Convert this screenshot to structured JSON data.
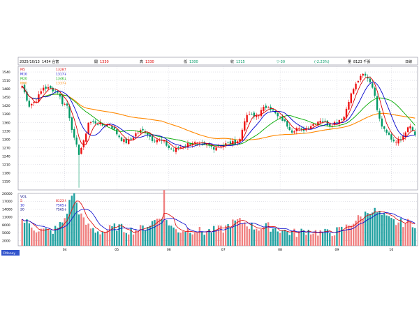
{
  "header": {
    "date": "2025/10/13",
    "code_name": "1454 台富",
    "open_label": "開",
    "open_value": "1330",
    "high_label": "高",
    "high_value": "1330",
    "low_label": "低",
    "low_value": "1300",
    "close_label": "收",
    "close_value": "1315",
    "change_value": "▽-30",
    "change_pct": "(-2.23%)",
    "volume_label": "量",
    "volume_value": "8123 千張",
    "period": "日線"
  },
  "legend_ma": [
    {
      "name": "M5",
      "value": "1328↑",
      "color": "#dd0000"
    },
    {
      "name": "M10",
      "value": "1317↓",
      "color": "#0000cc"
    },
    {
      "name": "M20",
      "value": "1346↓",
      "color": "#00aa00"
    },
    {
      "name": "M60",
      "value": "1337↓",
      "color": "#ff8800"
    }
  ],
  "legend_vol": [
    {
      "name": "VOL",
      "value": "",
      "color": "#000080"
    },
    {
      "name": "5",
      "value": "8123↑",
      "color": "#dd0000"
    },
    {
      "name": "10",
      "value": "7565↓",
      "color": "#0000cc"
    },
    {
      "name": "20",
      "value": "7565↓",
      "color": "#000080"
    }
  ],
  "footer_tag": "CMoney",
  "colors": {
    "up": "#ee1111",
    "down": "#009966",
    "vol_up": "#f08080",
    "vol_down": "#20a0a0",
    "ma5": "#dd0000",
    "ma10": "#0000cc",
    "ma20": "#00aa00",
    "ma60": "#ff8800",
    "grid": "#bbbbcc",
    "border": "#888899"
  },
  "chart_data": {
    "type": "candlestick",
    "price_axis": {
      "min": 1120,
      "max": 1560,
      "ticks": [
        1150,
        1180,
        1210,
        1240,
        1270,
        1300,
        1330,
        1360,
        1390,
        1420,
        1450,
        1480,
        1510,
        1540
      ]
    },
    "volume_axis": {
      "min": 0,
      "max": 20000,
      "ticks": [
        2000,
        5000,
        8000,
        11000,
        14000,
        17000,
        20000
      ]
    },
    "month_labels": [
      {
        "label": "04",
        "index": 18
      },
      {
        "label": "05",
        "index": 40
      },
      {
        "label": "06",
        "index": 62
      },
      {
        "label": "07",
        "index": 85
      },
      {
        "label": "08",
        "index": 109
      },
      {
        "label": "09",
        "index": 133
      },
      {
        "label": "10",
        "index": 156
      }
    ],
    "count": 167,
    "close_anchors": [
      [
        0,
        1490
      ],
      [
        3,
        1420
      ],
      [
        6,
        1440
      ],
      [
        9,
        1485
      ],
      [
        12,
        1480
      ],
      [
        15,
        1470
      ],
      [
        17,
        1430
      ],
      [
        19,
        1420
      ],
      [
        20,
        1380
      ],
      [
        22,
        1300
      ],
      [
        24,
        1250
      ],
      [
        26,
        1290
      ],
      [
        28,
        1360
      ],
      [
        31,
        1360
      ],
      [
        34,
        1350
      ],
      [
        37,
        1355
      ],
      [
        40,
        1320
      ],
      [
        42,
        1300
      ],
      [
        44,
        1290
      ],
      [
        46,
        1300
      ],
      [
        48,
        1320
      ],
      [
        50,
        1330
      ],
      [
        52,
        1330
      ],
      [
        55,
        1300
      ],
      [
        57,
        1300
      ],
      [
        60,
        1290
      ],
      [
        62,
        1270
      ],
      [
        64,
        1260
      ],
      [
        66,
        1270
      ],
      [
        69,
        1280
      ],
      [
        72,
        1290
      ],
      [
        75,
        1280
      ],
      [
        78,
        1280
      ],
      [
        81,
        1270
      ],
      [
        84,
        1280
      ],
      [
        87,
        1285
      ],
      [
        90,
        1290
      ],
      [
        92,
        1300
      ],
      [
        94,
        1370
      ],
      [
        96,
        1390
      ],
      [
        98,
        1380
      ],
      [
        100,
        1390
      ],
      [
        102,
        1410
      ],
      [
        104,
        1420
      ],
      [
        106,
        1400
      ],
      [
        108,
        1380
      ],
      [
        110,
        1370
      ],
      [
        112,
        1350
      ],
      [
        114,
        1330
      ],
      [
        116,
        1340
      ],
      [
        118,
        1330
      ],
      [
        120,
        1340
      ],
      [
        122,
        1350
      ],
      [
        124,
        1360
      ],
      [
        126,
        1370
      ],
      [
        128,
        1360
      ],
      [
        130,
        1350
      ],
      [
        132,
        1360
      ],
      [
        134,
        1370
      ],
      [
        136,
        1380
      ],
      [
        138,
        1440
      ],
      [
        140,
        1480
      ],
      [
        142,
        1510
      ],
      [
        144,
        1530
      ],
      [
        146,
        1520
      ],
      [
        148,
        1490
      ],
      [
        150,
        1410
      ],
      [
        152,
        1350
      ],
      [
        154,
        1330
      ],
      [
        156,
        1300
      ],
      [
        158,
        1290
      ],
      [
        160,
        1300
      ],
      [
        162,
        1330
      ],
      [
        164,
        1345
      ],
      [
        166,
        1315
      ]
    ],
    "volume_anchors": [
      [
        0,
        9500
      ],
      [
        3,
        8000
      ],
      [
        6,
        6000
      ],
      [
        9,
        5500
      ],
      [
        12,
        5000
      ],
      [
        15,
        6500
      ],
      [
        18,
        10000
      ],
      [
        20,
        16000
      ],
      [
        21,
        19500
      ],
      [
        22,
        19000
      ],
      [
        24,
        13000
      ],
      [
        26,
        9000
      ],
      [
        28,
        7000
      ],
      [
        31,
        5500
      ],
      [
        34,
        5000
      ],
      [
        37,
        6000
      ],
      [
        40,
        7000
      ],
      [
        43,
        6000
      ],
      [
        46,
        5500
      ],
      [
        50,
        6000
      ],
      [
        54,
        8000
      ],
      [
        57,
        10000
      ],
      [
        59,
        11500
      ],
      [
        60,
        20000
      ],
      [
        61,
        9500
      ],
      [
        64,
        6000
      ],
      [
        67,
        5500
      ],
      [
        70,
        6000
      ],
      [
        73,
        5500
      ],
      [
        77,
        5000
      ],
      [
        81,
        5500
      ],
      [
        85,
        6000
      ],
      [
        88,
        8000
      ],
      [
        91,
        9000
      ],
      [
        94,
        8500
      ],
      [
        97,
        7000
      ],
      [
        100,
        6500
      ],
      [
        104,
        7000
      ],
      [
        108,
        6000
      ],
      [
        112,
        5000
      ],
      [
        116,
        4500
      ],
      [
        120,
        5500
      ],
      [
        124,
        5000
      ],
      [
        128,
        4500
      ],
      [
        132,
        5000
      ],
      [
        136,
        6000
      ],
      [
        140,
        9000
      ],
      [
        144,
        11000
      ],
      [
        147,
        13500
      ],
      [
        150,
        12500
      ],
      [
        154,
        10000
      ],
      [
        158,
        8500
      ],
      [
        162,
        8500
      ],
      [
        166,
        8123
      ]
    ]
  }
}
